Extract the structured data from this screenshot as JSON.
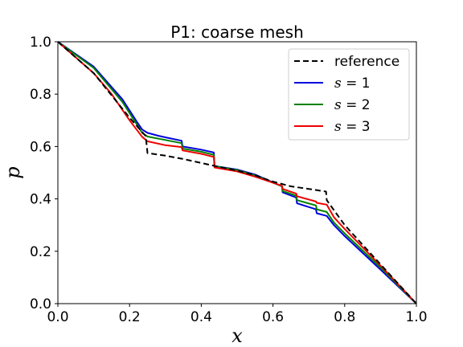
{
  "chart_data": {
    "type": "line",
    "title": "P1: coarse mesh",
    "xlabel": "x",
    "ylabel": "p",
    "xlim": [
      0.0,
      1.0
    ],
    "ylim": [
      0.0,
      1.0
    ],
    "xticks": [
      "0.0",
      "0.2",
      "0.4",
      "0.6",
      "0.8",
      "1.0"
    ],
    "yticks": [
      "0.0",
      "0.2",
      "0.4",
      "0.6",
      "0.8",
      "1.0"
    ],
    "grid": false,
    "legend_position": "top-right",
    "series": [
      {
        "name": "reference",
        "legend_parts": [
          "reference"
        ],
        "color": "#000000",
        "dash": "dashed",
        "x": [
          0.0,
          0.1,
          0.2,
          0.245,
          0.25,
          0.3,
          0.35,
          0.4,
          0.44,
          0.5,
          0.55,
          0.6,
          0.65,
          0.7,
          0.748,
          0.75,
          0.8,
          0.9,
          1.0
        ],
        "y": [
          1.0,
          0.88,
          0.71,
          0.64,
          0.575,
          0.565,
          0.552,
          0.537,
          0.525,
          0.508,
          0.49,
          0.466,
          0.448,
          0.438,
          0.428,
          0.395,
          0.3,
          0.15,
          0.0
        ]
      },
      {
        "name": "s = 1",
        "legend_parts": [
          "s",
          " = 1"
        ],
        "color": "#0000dd",
        "dash": "solid",
        "x": [
          0.0,
          0.1,
          0.18,
          0.22,
          0.235,
          0.25,
          0.28,
          0.3,
          0.345,
          0.348,
          0.4,
          0.435,
          0.437,
          0.5,
          0.55,
          0.625,
          0.627,
          0.665,
          0.667,
          0.72,
          0.722,
          0.75,
          0.77,
          0.8,
          0.9,
          1.0
        ],
        "y": [
          1.0,
          0.905,
          0.78,
          0.695,
          0.665,
          0.652,
          0.641,
          0.635,
          0.622,
          0.6,
          0.588,
          0.577,
          0.525,
          0.512,
          0.493,
          0.448,
          0.425,
          0.405,
          0.383,
          0.36,
          0.345,
          0.335,
          0.3,
          0.258,
          0.13,
          0.0
        ]
      },
      {
        "name": "s = 2",
        "legend_parts": [
          "s",
          " = 2"
        ],
        "color": "#008000",
        "dash": "solid",
        "x": [
          0.0,
          0.1,
          0.18,
          0.22,
          0.235,
          0.25,
          0.3,
          0.345,
          0.348,
          0.4,
          0.435,
          0.437,
          0.5,
          0.55,
          0.625,
          0.627,
          0.665,
          0.667,
          0.72,
          0.722,
          0.75,
          0.77,
          0.8,
          0.9,
          1.0
        ],
        "y": [
          1.0,
          0.9,
          0.77,
          0.685,
          0.652,
          0.638,
          0.625,
          0.613,
          0.592,
          0.58,
          0.568,
          0.525,
          0.51,
          0.49,
          0.448,
          0.43,
          0.412,
          0.395,
          0.375,
          0.36,
          0.35,
          0.31,
          0.268,
          0.138,
          0.0
        ]
      },
      {
        "name": "s = 3",
        "legend_parts": [
          "s",
          " = 3"
        ],
        "color": "#ee0000",
        "dash": "solid",
        "x": [
          0.0,
          0.1,
          0.15,
          0.2,
          0.235,
          0.25,
          0.3,
          0.345,
          0.348,
          0.4,
          0.435,
          0.437,
          0.5,
          0.55,
          0.625,
          0.627,
          0.665,
          0.667,
          0.72,
          0.722,
          0.75,
          0.77,
          0.8,
          0.9,
          1.0
        ],
        "y": [
          1.0,
          0.88,
          0.8,
          0.7,
          0.637,
          0.62,
          0.605,
          0.598,
          0.585,
          0.572,
          0.56,
          0.52,
          0.505,
          0.485,
          0.45,
          0.438,
          0.42,
          0.41,
          0.39,
          0.385,
          0.378,
          0.33,
          0.285,
          0.145,
          0.0
        ]
      }
    ]
  }
}
